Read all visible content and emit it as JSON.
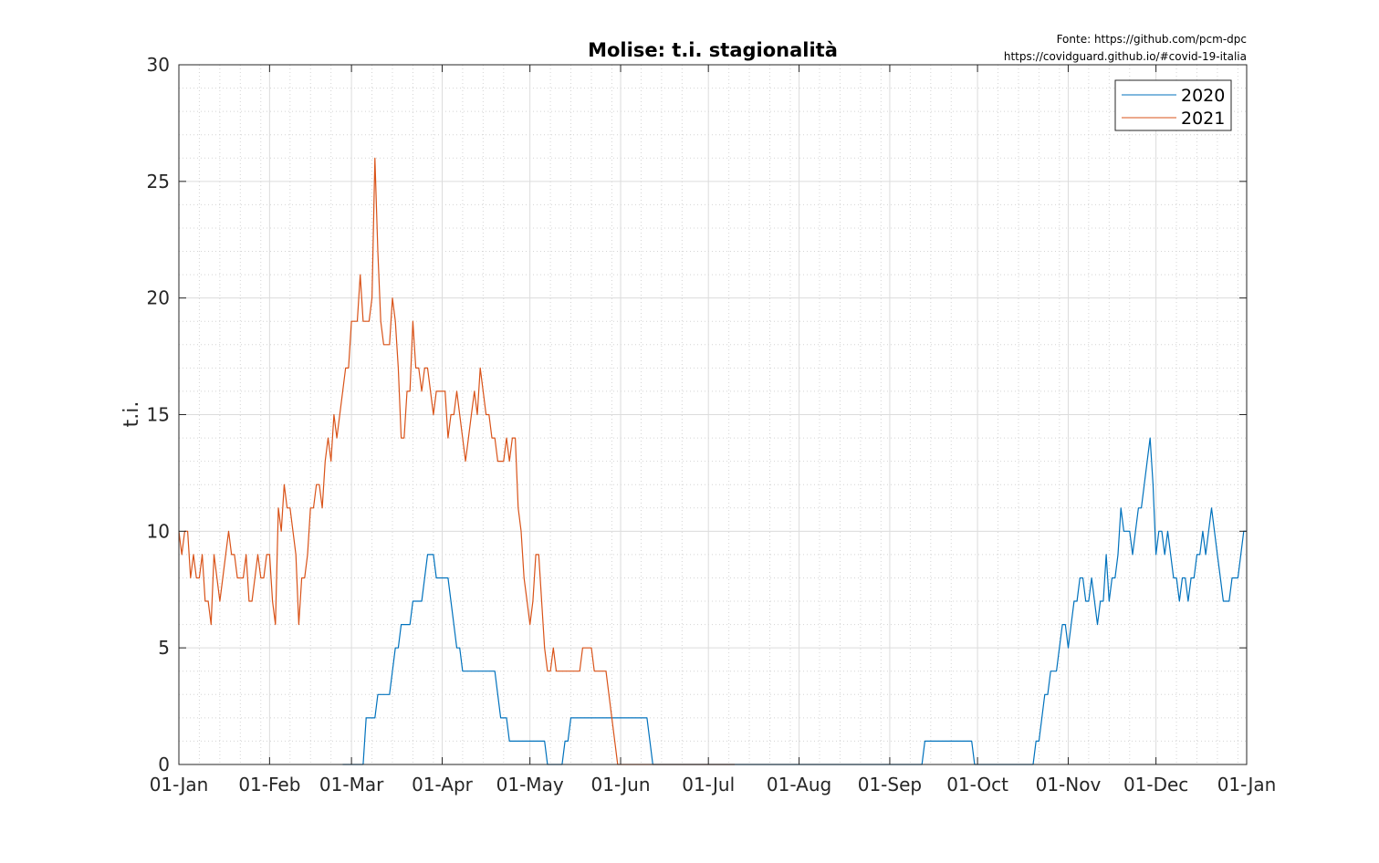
{
  "source_lines": [
    "Fonte: https://github.com/pcm-dpc",
    "https://covidguard.github.io/#covid-19-italia"
  ],
  "chart_data": {
    "type": "line",
    "title": "Molise: t.i. stagionalità",
    "xlabel": "",
    "ylabel": "t.i.",
    "ylim": [
      0,
      30
    ],
    "yticks": [
      0,
      5,
      10,
      15,
      20,
      25,
      30
    ],
    "xlim": [
      0,
      365
    ],
    "xticks": [
      {
        "day": 0,
        "label": "01-Jan"
      },
      {
        "day": 31,
        "label": "01-Feb"
      },
      {
        "day": 59,
        "label": "01-Mar"
      },
      {
        "day": 90,
        "label": "01-Apr"
      },
      {
        "day": 120,
        "label": "01-May"
      },
      {
        "day": 151,
        "label": "01-Jun"
      },
      {
        "day": 181,
        "label": "01-Jul"
      },
      {
        "day": 212,
        "label": "01-Aug"
      },
      {
        "day": 243,
        "label": "01-Sep"
      },
      {
        "day": 273,
        "label": "01-Oct"
      },
      {
        "day": 304,
        "label": "01-Nov"
      },
      {
        "day": 334,
        "label": "01-Dec"
      },
      {
        "day": 365,
        "label": "01-Jan"
      }
    ],
    "grid": true,
    "legend_position": "top-right",
    "series": [
      {
        "name": "2020",
        "color": "#0072BD",
        "points": [
          [
            56,
            0
          ],
          [
            63,
            0
          ],
          [
            64,
            2
          ],
          [
            67,
            2
          ],
          [
            68,
            3
          ],
          [
            72,
            3
          ],
          [
            73,
            4
          ],
          [
            74,
            5
          ],
          [
            75,
            5
          ],
          [
            76,
            6
          ],
          [
            79,
            6
          ],
          [
            80,
            7
          ],
          [
            83,
            7
          ],
          [
            84,
            8
          ],
          [
            85,
            9
          ],
          [
            87,
            9
          ],
          [
            88,
            8
          ],
          [
            92,
            8
          ],
          [
            93,
            7
          ],
          [
            94,
            6
          ],
          [
            95,
            5
          ],
          [
            96,
            5
          ],
          [
            97,
            4
          ],
          [
            108,
            4
          ],
          [
            109,
            3
          ],
          [
            110,
            2
          ],
          [
            112,
            2
          ],
          [
            113,
            1
          ],
          [
            125,
            1
          ],
          [
            126,
            0
          ],
          [
            127,
            0
          ],
          [
            131,
            0
          ],
          [
            132,
            1
          ],
          [
            133,
            1
          ],
          [
            134,
            2
          ],
          [
            160,
            2
          ],
          [
            161,
            1
          ],
          [
            162,
            0
          ],
          [
            170,
            0
          ],
          [
            254,
            0
          ],
          [
            255,
            1
          ],
          [
            271,
            1
          ],
          [
            272,
            0
          ],
          [
            292,
            0
          ],
          [
            293,
            1
          ],
          [
            294,
            1
          ],
          [
            295,
            2
          ],
          [
            296,
            3
          ],
          [
            297,
            3
          ],
          [
            298,
            4
          ],
          [
            300,
            4
          ],
          [
            301,
            5
          ],
          [
            302,
            6
          ],
          [
            303,
            6
          ],
          [
            304,
            5
          ],
          [
            305,
            6
          ],
          [
            306,
            7
          ],
          [
            307,
            7
          ],
          [
            308,
            8
          ],
          [
            309,
            8
          ],
          [
            310,
            7
          ],
          [
            311,
            7
          ],
          [
            312,
            8
          ],
          [
            313,
            7
          ],
          [
            314,
            6
          ],
          [
            315,
            7
          ],
          [
            316,
            7
          ],
          [
            317,
            9
          ],
          [
            318,
            7
          ],
          [
            319,
            8
          ],
          [
            320,
            8
          ],
          [
            321,
            9
          ],
          [
            322,
            11
          ],
          [
            323,
            10
          ],
          [
            325,
            10
          ],
          [
            326,
            9
          ],
          [
            327,
            10
          ],
          [
            328,
            11
          ],
          [
            329,
            11
          ],
          [
            330,
            12
          ],
          [
            331,
            13
          ],
          [
            332,
            14
          ],
          [
            333,
            12
          ],
          [
            334,
            9
          ],
          [
            335,
            10
          ],
          [
            336,
            10
          ],
          [
            337,
            9
          ],
          [
            338,
            10
          ],
          [
            339,
            9
          ],
          [
            340,
            8
          ],
          [
            341,
            8
          ],
          [
            342,
            7
          ],
          [
            343,
            8
          ],
          [
            344,
            8
          ],
          [
            345,
            7
          ],
          [
            346,
            8
          ],
          [
            347,
            8
          ],
          [
            348,
            9
          ],
          [
            349,
            9
          ],
          [
            350,
            10
          ],
          [
            351,
            9
          ],
          [
            352,
            10
          ],
          [
            353,
            11
          ],
          [
            354,
            10
          ],
          [
            355,
            9
          ],
          [
            356,
            8
          ],
          [
            357,
            7
          ],
          [
            359,
            7
          ],
          [
            360,
            8
          ],
          [
            362,
            8
          ],
          [
            363,
            9
          ],
          [
            364,
            10
          ],
          [
            365,
            10
          ]
        ]
      },
      {
        "name": "2021",
        "color": "#D95319",
        "points": [
          [
            0,
            10
          ],
          [
            1,
            9
          ],
          [
            2,
            10
          ],
          [
            3,
            10
          ],
          [
            4,
            8
          ],
          [
            5,
            9
          ],
          [
            6,
            8
          ],
          [
            7,
            8
          ],
          [
            8,
            9
          ],
          [
            9,
            7
          ],
          [
            10,
            7
          ],
          [
            11,
            6
          ],
          [
            12,
            9
          ],
          [
            13,
            8
          ],
          [
            14,
            7
          ],
          [
            15,
            8
          ],
          [
            16,
            9
          ],
          [
            17,
            10
          ],
          [
            18,
            9
          ],
          [
            19,
            9
          ],
          [
            20,
            8
          ],
          [
            22,
            8
          ],
          [
            23,
            9
          ],
          [
            24,
            7
          ],
          [
            25,
            7
          ],
          [
            26,
            8
          ],
          [
            27,
            9
          ],
          [
            28,
            8
          ],
          [
            29,
            8
          ],
          [
            30,
            9
          ],
          [
            31,
            9
          ],
          [
            32,
            7
          ],
          [
            33,
            6
          ],
          [
            34,
            11
          ],
          [
            35,
            10
          ],
          [
            36,
            12
          ],
          [
            37,
            11
          ],
          [
            38,
            11
          ],
          [
            39,
            10
          ],
          [
            40,
            9
          ],
          [
            41,
            6
          ],
          [
            42,
            8
          ],
          [
            43,
            8
          ],
          [
            44,
            9
          ],
          [
            45,
            11
          ],
          [
            46,
            11
          ],
          [
            47,
            12
          ],
          [
            48,
            12
          ],
          [
            49,
            11
          ],
          [
            50,
            13
          ],
          [
            51,
            14
          ],
          [
            52,
            13
          ],
          [
            53,
            15
          ],
          [
            54,
            14
          ],
          [
            55,
            15
          ],
          [
            56,
            16
          ],
          [
            57,
            17
          ],
          [
            58,
            17
          ],
          [
            59,
            19
          ],
          [
            61,
            19
          ],
          [
            62,
            21
          ],
          [
            63,
            19
          ],
          [
            65,
            19
          ],
          [
            66,
            20
          ],
          [
            67,
            26
          ],
          [
            68,
            22
          ],
          [
            69,
            19
          ],
          [
            70,
            18
          ],
          [
            72,
            18
          ],
          [
            73,
            20
          ],
          [
            74,
            19
          ],
          [
            75,
            17
          ],
          [
            76,
            14
          ],
          [
            77,
            14
          ],
          [
            78,
            16
          ],
          [
            79,
            16
          ],
          [
            80,
            19
          ],
          [
            81,
            17
          ],
          [
            82,
            17
          ],
          [
            83,
            16
          ],
          [
            84,
            17
          ],
          [
            85,
            17
          ],
          [
            86,
            16
          ],
          [
            87,
            15
          ],
          [
            88,
            16
          ],
          [
            91,
            16
          ],
          [
            92,
            14
          ],
          [
            93,
            15
          ],
          [
            94,
            15
          ],
          [
            95,
            16
          ],
          [
            96,
            15
          ],
          [
            97,
            14
          ],
          [
            98,
            13
          ],
          [
            99,
            14
          ],
          [
            100,
            15
          ],
          [
            101,
            16
          ],
          [
            102,
            15
          ],
          [
            103,
            17
          ],
          [
            104,
            16
          ],
          [
            105,
            15
          ],
          [
            106,
            15
          ],
          [
            107,
            14
          ],
          [
            108,
            14
          ],
          [
            109,
            13
          ],
          [
            111,
            13
          ],
          [
            112,
            14
          ],
          [
            113,
            13
          ],
          [
            114,
            14
          ],
          [
            115,
            14
          ],
          [
            116,
            11
          ],
          [
            117,
            10
          ],
          [
            118,
            8
          ],
          [
            119,
            7
          ],
          [
            120,
            6
          ],
          [
            121,
            7
          ],
          [
            122,
            9
          ],
          [
            123,
            9
          ],
          [
            124,
            7
          ],
          [
            125,
            5
          ],
          [
            126,
            4
          ],
          [
            127,
            4
          ],
          [
            128,
            5
          ],
          [
            129,
            4
          ],
          [
            137,
            4
          ],
          [
            138,
            5
          ],
          [
            141,
            5
          ],
          [
            142,
            4
          ],
          [
            146,
            4
          ],
          [
            147,
            3
          ],
          [
            148,
            2
          ],
          [
            149,
            1
          ],
          [
            150,
            0
          ],
          [
            190,
            0
          ]
        ]
      }
    ]
  }
}
